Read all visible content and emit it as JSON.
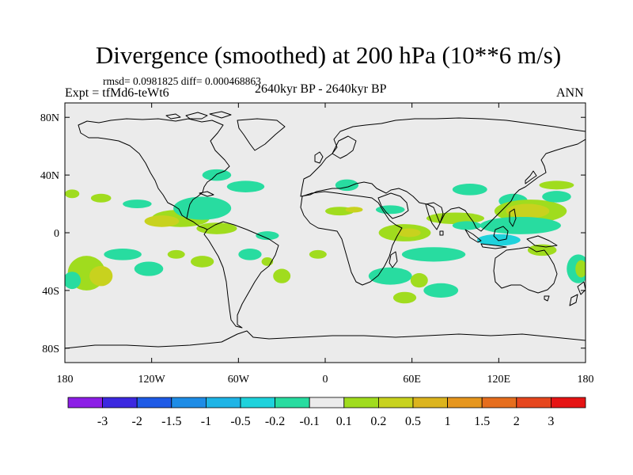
{
  "header": {
    "title": "Divergence (smoothed) at 200 hPa (10**6 m/s)",
    "stats": "rmsd= 0.0981825 diff= 0.000468863",
    "experiment": "Expt = tfMd6-teWt6",
    "period": "2640kyr BP - 2640kyr BP",
    "season": "ANN"
  },
  "chart_data": {
    "type": "heatmap",
    "projection": "cylindrical-equidistant",
    "title": "Divergence (smoothed) at 200 hPa (10**6 m/s)",
    "units": "10**6 m/s",
    "x_range": [
      -180,
      180
    ],
    "y_range": [
      -90,
      90
    ],
    "x_ticks": [
      {
        "value": -180,
        "label": "180"
      },
      {
        "value": -120,
        "label": "120W"
      },
      {
        "value": -60,
        "label": "60W"
      },
      {
        "value": 0,
        "label": "0"
      },
      {
        "value": 60,
        "label": "60E"
      },
      {
        "value": 120,
        "label": "120E"
      },
      {
        "value": 180,
        "label": "180"
      }
    ],
    "y_ticks": [
      {
        "value": 80,
        "label": "80N"
      },
      {
        "value": 40,
        "label": "40N"
      },
      {
        "value": 0,
        "label": "0"
      },
      {
        "value": -40,
        "label": "40S"
      },
      {
        "value": -80,
        "label": "80S"
      }
    ],
    "colorbar": {
      "labels": [
        "-3",
        "-2",
        "-1.5",
        "-1",
        "-0.5",
        "-0.2",
        "-0.1",
        "0.1",
        "0.2",
        "0.5",
        "1",
        "1.5",
        "2",
        "3"
      ],
      "colors": [
        "#8c1ee6",
        "#3c28e0",
        "#1e5ae6",
        "#1e8ce6",
        "#1eb4e6",
        "#1ed2dc",
        "#28dca0",
        "#ebebeb",
        "#a0dc1e",
        "#c8d21e",
        "#dcb41e",
        "#e6961e",
        "#e66e1e",
        "#e6461e",
        "#e61414"
      ]
    },
    "anomaly_regions": [
      {
        "lon": -155,
        "lat": 24,
        "rx": 7,
        "ry": 3,
        "value": 0.15
      },
      {
        "lon": -130,
        "lat": 20,
        "rx": 10,
        "ry": 3,
        "value": -0.15
      },
      {
        "lon": -100,
        "lat": 10,
        "rx": 20,
        "ry": 6,
        "value": 0.15
      },
      {
        "lon": -113,
        "lat": 8,
        "rx": 12,
        "ry": 4,
        "value": 0.3
      },
      {
        "lon": -85,
        "lat": 17,
        "rx": 20,
        "ry": 8,
        "value": -0.15
      },
      {
        "lon": -55,
        "lat": 32,
        "rx": 13,
        "ry": 4,
        "value": -0.15
      },
      {
        "lon": -75,
        "lat": 40,
        "rx": 10,
        "ry": 4,
        "value": -0.15
      },
      {
        "lon": -75,
        "lat": 3,
        "rx": 14,
        "ry": 4,
        "value": 0.15
      },
      {
        "lon": -40,
        "lat": -2,
        "rx": 8,
        "ry": 3,
        "value": -0.15
      },
      {
        "lon": -140,
        "lat": -15,
        "rx": 13,
        "ry": 4,
        "value": -0.15
      },
      {
        "lon": -103,
        "lat": -15,
        "rx": 6,
        "ry": 3,
        "value": 0.15
      },
      {
        "lon": -165,
        "lat": -28,
        "rx": 13,
        "ry": 12,
        "value": 0.15
      },
      {
        "lon": -155,
        "lat": -30,
        "rx": 8,
        "ry": 7,
        "value": 0.3
      },
      {
        "lon": -122,
        "lat": -25,
        "rx": 10,
        "ry": 5,
        "value": -0.15
      },
      {
        "lon": -85,
        "lat": -20,
        "rx": 8,
        "ry": 4,
        "value": 0.15
      },
      {
        "lon": -52,
        "lat": -15,
        "rx": 8,
        "ry": 4,
        "value": -0.15
      },
      {
        "lon": -30,
        "lat": -30,
        "rx": 6,
        "ry": 5,
        "value": 0.15
      },
      {
        "lon": -175,
        "lat": -33,
        "rx": 6,
        "ry": 6,
        "value": -0.15
      },
      {
        "lon": -5,
        "lat": -15,
        "rx": 6,
        "ry": 3,
        "value": 0.15
      },
      {
        "lon": -40,
        "lat": -20,
        "rx": 4,
        "ry": 3,
        "value": 0.15
      },
      {
        "lon": -175,
        "lat": 27,
        "rx": 5,
        "ry": 3,
        "value": 0.15
      },
      {
        "lon": 10,
        "lat": 15,
        "rx": 10,
        "ry": 3,
        "value": 0.15
      },
      {
        "lon": 20,
        "lat": 16,
        "rx": 6,
        "ry": 2,
        "value": 0.3
      },
      {
        "lon": 45,
        "lat": 16,
        "rx": 10,
        "ry": 3,
        "value": -0.15
      },
      {
        "lon": 15,
        "lat": 33,
        "rx": 8,
        "ry": 4,
        "value": -0.15
      },
      {
        "lon": 55,
        "lat": 0,
        "rx": 18,
        "ry": 6,
        "value": 0.15
      },
      {
        "lon": 58,
        "lat": 0,
        "rx": 8,
        "ry": 3,
        "value": 0.3
      },
      {
        "lon": 75,
        "lat": -15,
        "rx": 22,
        "ry": 5,
        "value": -0.15
      },
      {
        "lon": 45,
        "lat": -30,
        "rx": 15,
        "ry": 6,
        "value": -0.15
      },
      {
        "lon": 65,
        "lat": -33,
        "rx": 6,
        "ry": 5,
        "value": 0.15
      },
      {
        "lon": 90,
        "lat": 10,
        "rx": 20,
        "ry": 4,
        "value": 0.15
      },
      {
        "lon": 98,
        "lat": 5,
        "rx": 10,
        "ry": 3,
        "value": -0.15
      },
      {
        "lon": 100,
        "lat": 30,
        "rx": 12,
        "ry": 4,
        "value": -0.15
      },
      {
        "lon": 130,
        "lat": 22,
        "rx": 10,
        "ry": 5,
        "value": -0.15
      },
      {
        "lon": 142,
        "lat": 15,
        "rx": 25,
        "ry": 8,
        "value": 0.15
      },
      {
        "lon": 140,
        "lat": 15,
        "rx": 15,
        "ry": 5,
        "value": 0.3
      },
      {
        "lon": 135,
        "lat": 5,
        "rx": 28,
        "ry": 6,
        "value": -0.15
      },
      {
        "lon": 120,
        "lat": -5,
        "rx": 15,
        "ry": 4,
        "value": -0.3
      },
      {
        "lon": 160,
        "lat": 25,
        "rx": 10,
        "ry": 4,
        "value": -0.15
      },
      {
        "lon": 150,
        "lat": -12,
        "rx": 10,
        "ry": 4,
        "value": 0.15
      },
      {
        "lon": 175,
        "lat": -25,
        "rx": 8,
        "ry": 10,
        "value": -0.15
      },
      {
        "lon": 177,
        "lat": -25,
        "rx": 4,
        "ry": 6,
        "value": 0.15
      },
      {
        "lon": 160,
        "lat": 33,
        "rx": 12,
        "ry": 3,
        "value": 0.15
      },
      {
        "lon": 80,
        "lat": -40,
        "rx": 12,
        "ry": 5,
        "value": -0.15
      },
      {
        "lon": 55,
        "lat": -45,
        "rx": 8,
        "ry": 4,
        "value": 0.15
      }
    ]
  }
}
